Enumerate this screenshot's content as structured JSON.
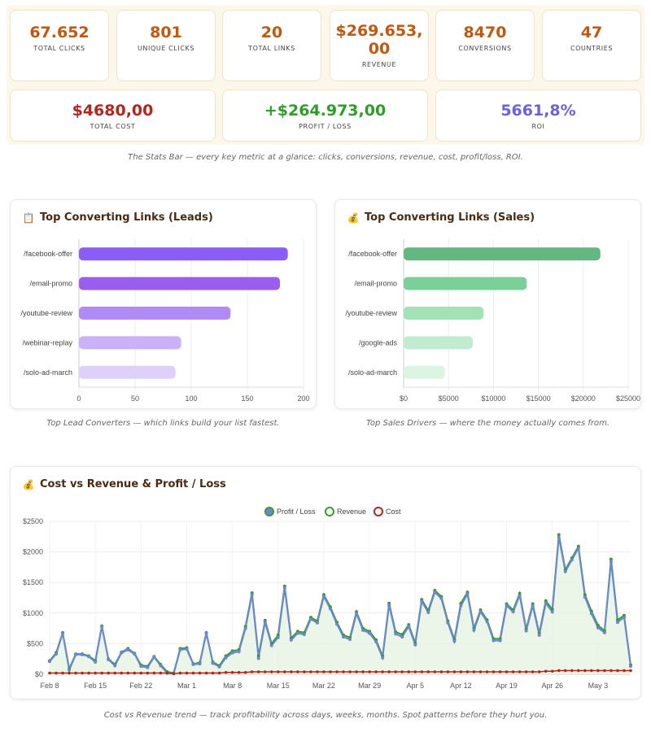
{
  "stats_row1": [
    {
      "value": "67.652",
      "label": "TOTAL CLICKS",
      "color": "#c0590f"
    },
    {
      "value": "801",
      "label": "UNIQUE CLICKS",
      "color": "#c0590f"
    },
    {
      "value": "20",
      "label": "TOTAL LINKS",
      "color": "#c0590f"
    },
    {
      "value": "$269.653,",
      "value2": "00",
      "label": "REVENUE",
      "color": "#c0590f"
    },
    {
      "value": "8470",
      "label": "CONVERSIONS",
      "color": "#c0590f"
    },
    {
      "value": "47",
      "label": "COUNTRIES",
      "color": "#c0590f"
    }
  ],
  "stats_row2": [
    {
      "value": "$4680,00",
      "label": "TOTAL COST",
      "color": "#b3261e"
    },
    {
      "value": "+$264.973,00",
      "label": "PROFIT / LOSS",
      "color": "#2e9e2a"
    },
    {
      "value": "5661,8%",
      "label": "ROI",
      "color": "#6a63e0"
    }
  ],
  "captions": {
    "stats": "The Stats Bar — every key metric at a glance: clicks, conversions, revenue, cost, profit/loss, ROI.",
    "leads": "Top Lead Converters — which links build your list fastest.",
    "sales": "Top Sales Drivers — where the money actually comes from.",
    "trend": "Cost vs Revenue trend — track profitability across days, weeks, months. Spot patterns before they hurt you."
  },
  "panels": {
    "leads": {
      "title": "Top Converting Links (Leads)",
      "icon": "clipboard-icon"
    },
    "sales": {
      "title": "Top Converting Links (Sales)",
      "icon": "money-bag-icon"
    },
    "trend": {
      "title": "Cost vs Revenue & Profit / Loss",
      "icon": "money-bag-icon"
    }
  },
  "chart_data": [
    {
      "type": "bar",
      "orientation": "horizontal",
      "title": "Top Converting Links (Leads)",
      "categories": [
        "/facebook-offer",
        "/email-promo",
        "/youtube-review",
        "/webinar-replay",
        "/solo-ad-march"
      ],
      "values": [
        186,
        179,
        135,
        91,
        86
      ],
      "xlim": [
        0,
        200
      ],
      "xticks": [
        "0",
        "50",
        "100",
        "150",
        "200"
      ],
      "colors": [
        "#8b5cf6",
        "#9b5cf0",
        "#b08af5",
        "#c9b2f8",
        "#ddd1fa"
      ],
      "grid": true
    },
    {
      "type": "bar",
      "orientation": "horizontal",
      "title": "Top Converting Links (Sales)",
      "categories": [
        "/facebook-offer",
        "/email-promo",
        "/youtube-review",
        "/google-ads",
        "/solo-ad-march"
      ],
      "values": [
        21900,
        13700,
        8900,
        7700,
        4600
      ],
      "xlim": [
        0,
        25000
      ],
      "xticks": [
        "$0",
        "$5000",
        "$10000",
        "$15000",
        "$20000",
        "$25000"
      ],
      "colors": [
        "#63b881",
        "#7ccf98",
        "#a2e2b6",
        "#c2eccf",
        "#dcf5e3"
      ],
      "grid": true
    },
    {
      "type": "line",
      "title": "Cost vs Revenue & Profit / Loss",
      "legend": [
        "Profit / Loss",
        "Revenue",
        "Cost"
      ],
      "legend_position": "top",
      "ylim": [
        0,
        2500
      ],
      "yticks": [
        "$0",
        "$500",
        "$1000",
        "$1500",
        "$2000",
        "$2500"
      ],
      "xticks": [
        "Feb 8",
        "Feb 15",
        "Feb 22",
        "Mar 1",
        "Mar 8",
        "Mar 15",
        "Mar 22",
        "Mar 29",
        "Apr 5",
        "Apr 12",
        "Apr 19",
        "Apr 26",
        "May 3"
      ],
      "start": "Feb 8",
      "series": [
        {
          "name": "Revenue",
          "color": "#3a9a33",
          "values": [
            220,
            350,
            680,
            90,
            330,
            330,
            300,
            220,
            790,
            250,
            160,
            360,
            420,
            340,
            150,
            130,
            290,
            160,
            40,
            20,
            420,
            430,
            170,
            190,
            680,
            200,
            140,
            300,
            380,
            400,
            780,
            1330,
            300,
            880,
            500,
            640,
            1440,
            590,
            700,
            680,
            930,
            870,
            1300,
            1100,
            850,
            640,
            600,
            1020,
            750,
            700,
            560,
            300,
            1160,
            690,
            650,
            810,
            510,
            1220,
            1040,
            1370,
            1270,
            870,
            570,
            1160,
            1340,
            750,
            1050,
            890,
            580,
            580,
            1150,
            1050,
            1320,
            740,
            1150,
            670,
            1200,
            1060,
            2280,
            1710,
            1900,
            2090,
            1300,
            1030,
            800,
            710,
            1880,
            890,
            960,
            150
          ],
          "profit": [
            210,
            330,
            670,
            70,
            320,
            320,
            290,
            200,
            780,
            240,
            140,
            350,
            400,
            330,
            130,
            110,
            280,
            140,
            20,
            10,
            400,
            410,
            160,
            170,
            670,
            180,
            120,
            270,
            350,
            370,
            750,
            1300,
            260,
            850,
            470,
            600,
            1410,
            560,
            670,
            650,
            900,
            840,
            1270,
            1070,
            820,
            610,
            570,
            990,
            720,
            670,
            530,
            270,
            1130,
            660,
            610,
            780,
            480,
            1190,
            1010,
            1340,
            1240,
            840,
            540,
            1120,
            1310,
            720,
            1020,
            860,
            550,
            550,
            1120,
            1020,
            1290,
            710,
            1120,
            640,
            1160,
            1020,
            2240,
            1680,
            1870,
            2060,
            1260,
            990,
            760,
            680,
            1840,
            850,
            930,
            130
          ]
        },
        {
          "name": "Cost",
          "color": "#b3261e",
          "values": [
            20,
            20,
            20,
            20,
            20,
            20,
            20,
            20,
            20,
            20,
            20,
            20,
            20,
            20,
            20,
            20,
            20,
            20,
            20,
            10,
            20,
            20,
            20,
            20,
            20,
            20,
            20,
            30,
            30,
            30,
            30,
            40,
            40,
            40,
            40,
            40,
            40,
            40,
            40,
            40,
            40,
            40,
            40,
            40,
            40,
            40,
            40,
            40,
            40,
            40,
            40,
            40,
            40,
            40,
            40,
            40,
            40,
            40,
            40,
            40,
            40,
            40,
            40,
            40,
            40,
            40,
            40,
            40,
            40,
            40,
            40,
            40,
            40,
            40,
            40,
            40,
            50,
            50,
            60,
            60,
            60,
            60,
            60,
            60,
            60,
            60,
            60,
            60,
            60,
            60
          ]
        }
      ]
    }
  ]
}
